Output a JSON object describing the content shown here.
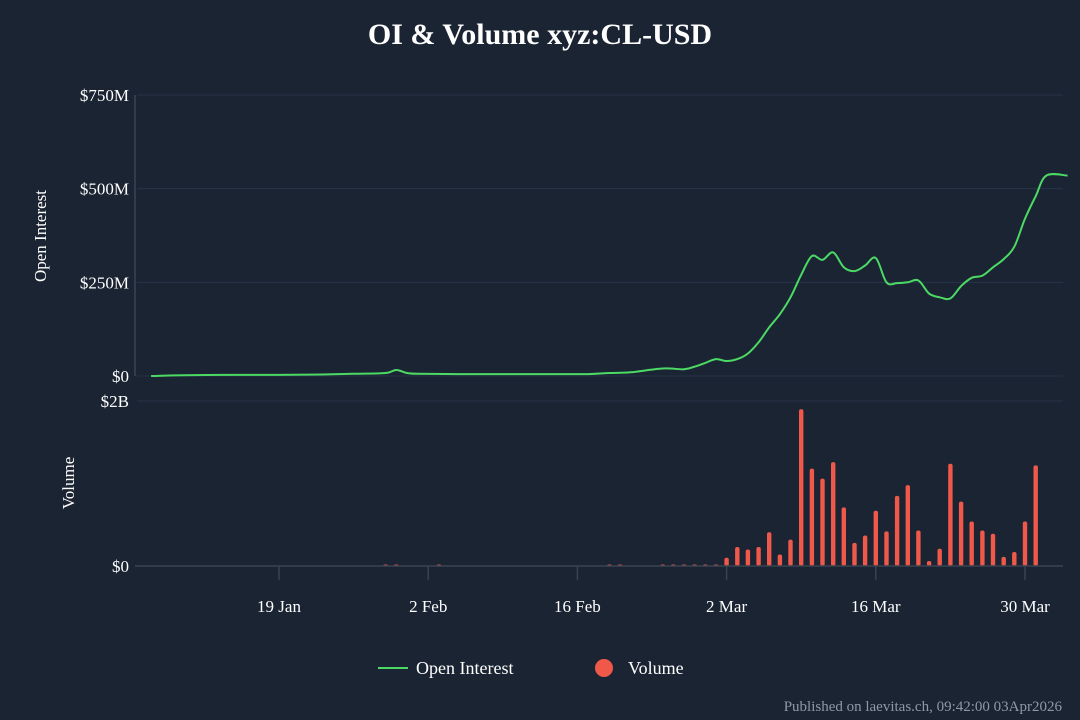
{
  "page": {
    "title": "OI & Volume xyz:CL-USD",
    "footer": "Published on laevitas.ch, 09:42:00 03Apr2026"
  },
  "colors": {
    "background": "#1b2433",
    "open_interest": "#4cd964",
    "volume": "#f0584a",
    "grid": "#26344a",
    "axis": "#3a4352",
    "footer": "#8f98a6"
  },
  "legend": [
    {
      "name": "Open Interest",
      "marker": "line",
      "color": "#4cd964"
    },
    {
      "name": "Volume",
      "marker": "circle",
      "color": "#f0584a"
    }
  ],
  "chart_data": [
    {
      "type": "line",
      "panel": "top",
      "ylabel": "Open Interest",
      "ylim": [
        0,
        750000000
      ],
      "yticks": [
        0,
        250000000,
        500000000,
        750000000
      ],
      "ytick_labels": [
        "$0",
        "$250M",
        "$500M",
        "$750M"
      ],
      "grid": true,
      "series": [
        {
          "name": "Open Interest",
          "color": "#4cd964",
          "x": [
            "2026-01-07",
            "2026-01-10",
            "2026-01-14",
            "2026-01-19",
            "2026-01-23",
            "2026-01-26",
            "2026-01-29",
            "2026-01-30",
            "2026-01-31",
            "2026-02-01",
            "2026-02-05",
            "2026-02-09",
            "2026-02-13",
            "2026-02-17",
            "2026-02-19",
            "2026-02-21",
            "2026-02-24",
            "2026-02-26",
            "2026-02-27",
            "2026-02-28",
            "2026-03-01",
            "2026-03-02",
            "2026-03-03",
            "2026-03-04",
            "2026-03-05",
            "2026-03-06",
            "2026-03-07",
            "2026-03-08",
            "2026-03-09",
            "2026-03-10",
            "2026-03-11",
            "2026-03-12",
            "2026-03-13",
            "2026-03-14",
            "2026-03-15",
            "2026-03-16",
            "2026-03-17",
            "2026-03-18",
            "2026-03-19",
            "2026-03-20",
            "2026-03-21",
            "2026-03-22",
            "2026-03-23",
            "2026-03-24",
            "2026-03-25",
            "2026-03-26",
            "2026-03-27",
            "2026-03-28",
            "2026-03-29",
            "2026-03-30",
            "2026-03-31",
            "2026-04-01",
            "2026-04-03"
          ],
          "values": [
            0,
            2000000,
            3000000,
            3000000,
            4000000,
            6000000,
            8000000,
            16000000,
            8000000,
            6000000,
            5000000,
            5000000,
            5000000,
            5000000,
            8000000,
            10000000,
            20000000,
            18000000,
            25000000,
            35000000,
            45000000,
            40000000,
            45000000,
            60000000,
            90000000,
            130000000,
            165000000,
            210000000,
            270000000,
            320000000,
            310000000,
            330000000,
            290000000,
            280000000,
            295000000,
            315000000,
            250000000,
            248000000,
            250000000,
            255000000,
            220000000,
            210000000,
            207000000,
            240000000,
            262000000,
            268000000,
            290000000,
            312000000,
            345000000,
            420000000,
            480000000,
            535000000,
            535000000
          ]
        }
      ]
    },
    {
      "type": "bar",
      "panel": "bottom",
      "ylabel": "Volume",
      "ylim": [
        0,
        2000000000
      ],
      "yticks": [
        0,
        2000000000
      ],
      "ytick_labels": [
        "$0",
        "$2B"
      ],
      "x_ticks": [
        "2026-01-19",
        "2026-02-02",
        "2026-02-16",
        "2026-03-02",
        "2026-03-16",
        "2026-03-30"
      ],
      "x_tick_labels": [
        "19 Jan",
        "2 Feb",
        "16 Feb",
        "2 Mar",
        "16 Mar",
        "30 Mar"
      ],
      "series": [
        {
          "name": "Volume",
          "color": "#f0584a",
          "x": [
            "2026-01-29",
            "2026-01-30",
            "2026-02-03",
            "2026-02-19",
            "2026-02-20",
            "2026-02-24",
            "2026-02-25",
            "2026-02-26",
            "2026-02-27",
            "2026-02-28",
            "2026-03-01",
            "2026-03-02",
            "2026-03-03",
            "2026-03-04",
            "2026-03-05",
            "2026-03-06",
            "2026-03-07",
            "2026-03-08",
            "2026-03-09",
            "2026-03-10",
            "2026-03-11",
            "2026-03-12",
            "2026-03-13",
            "2026-03-14",
            "2026-03-15",
            "2026-03-16",
            "2026-03-17",
            "2026-03-18",
            "2026-03-19",
            "2026-03-20",
            "2026-03-21",
            "2026-03-22",
            "2026-03-23",
            "2026-03-24",
            "2026-03-25",
            "2026-03-26",
            "2026-03-27",
            "2026-03-28",
            "2026-03-29",
            "2026-03-30",
            "2026-03-31",
            "2026-04-02"
          ],
          "values": [
            5000000,
            5000000,
            5000000,
            5000000,
            5000000,
            5000000,
            5000000,
            5000000,
            5000000,
            5000000,
            10000000,
            100000000,
            230000000,
            200000000,
            230000000,
            410000000,
            140000000,
            320000000,
            1900000000,
            1180000000,
            1060000000,
            1260000000,
            710000000,
            280000000,
            370000000,
            670000000,
            420000000,
            850000000,
            980000000,
            430000000,
            60000000,
            210000000,
            1240000000,
            780000000,
            540000000,
            430000000,
            390000000,
            110000000,
            170000000,
            540000000,
            1220000000,
            0
          ]
        }
      ]
    }
  ]
}
